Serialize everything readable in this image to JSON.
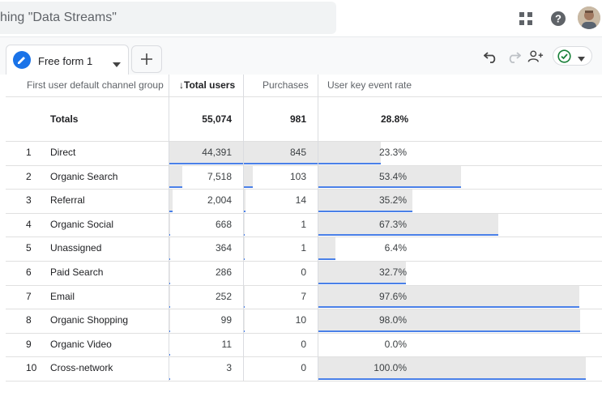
{
  "header": {
    "search_text": "hing \"Data Streams\""
  },
  "tabs": {
    "active_label": "Free form 1"
  },
  "table": {
    "columns": [
      "First user default channel group",
      "Total users",
      "Purchases",
      "User key event rate"
    ],
    "sort_indicator": "↓",
    "totals": {
      "label": "Totals",
      "total_users": "55,074",
      "purchases": "981",
      "key_event_rate": "28.8%"
    },
    "rows": [
      {
        "rank": "1",
        "channel": "Direct",
        "users": "44,391",
        "users_v": 44391,
        "purchases": "845",
        "purchases_v": 845,
        "rate": "23.3%",
        "rate_v": 23.3
      },
      {
        "rank": "2",
        "channel": "Organic Search",
        "users": "7,518",
        "users_v": 7518,
        "purchases": "103",
        "purchases_v": 103,
        "rate": "53.4%",
        "rate_v": 53.4
      },
      {
        "rank": "3",
        "channel": "Referral",
        "users": "2,004",
        "users_v": 2004,
        "purchases": "14",
        "purchases_v": 14,
        "rate": "35.2%",
        "rate_v": 35.2
      },
      {
        "rank": "4",
        "channel": "Organic Social",
        "users": "668",
        "users_v": 668,
        "purchases": "1",
        "purchases_v": 1,
        "rate": "67.3%",
        "rate_v": 67.3
      },
      {
        "rank": "5",
        "channel": "Unassigned",
        "users": "364",
        "users_v": 364,
        "purchases": "1",
        "purchases_v": 1,
        "rate": "6.4%",
        "rate_v": 6.4
      },
      {
        "rank": "6",
        "channel": "Paid Search",
        "users": "286",
        "users_v": 286,
        "purchases": "0",
        "purchases_v": 0,
        "rate": "32.7%",
        "rate_v": 32.7
      },
      {
        "rank": "7",
        "channel": "Email",
        "users": "252",
        "users_v": 252,
        "purchases": "7",
        "purchases_v": 7,
        "rate": "97.6%",
        "rate_v": 97.6
      },
      {
        "rank": "8",
        "channel": "Organic Shopping",
        "users": "99",
        "users_v": 99,
        "purchases": "10",
        "purchases_v": 10,
        "rate": "98.0%",
        "rate_v": 98.0
      },
      {
        "rank": "9",
        "channel": "Organic Video",
        "users": "11",
        "users_v": 11,
        "purchases": "0",
        "purchases_v": 0,
        "rate": "0.0%",
        "rate_v": 0.0
      },
      {
        "rank": "10",
        "channel": "Cross-network",
        "users": "3",
        "users_v": 3,
        "purchases": "0",
        "purchases_v": 0,
        "rate": "100.0%",
        "rate_v": 100.0
      }
    ]
  },
  "icons": {
    "apps": "apps-grid-icon",
    "help": "help-icon",
    "edit": "pencil-icon",
    "add": "plus-icon",
    "undo": "undo-icon",
    "redo": "redo-icon",
    "share": "share-user-icon",
    "status": "check-circle-icon"
  },
  "colors": {
    "accent": "#1a73e8",
    "bar_fill": "#e8e8e8",
    "underline": "#4a80e8",
    "status_green": "#188038"
  }
}
